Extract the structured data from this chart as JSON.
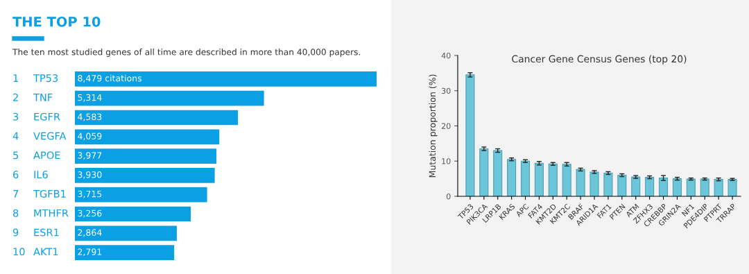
{
  "chart_data": [
    {
      "type": "bar",
      "orientation": "horizontal",
      "title": "THE TOP 10",
      "subtitle": "The ten most studied genes of all time are described in more than 40,000 papers.",
      "categories": [
        "TP53",
        "TNF",
        "EGFR",
        "VEGFA",
        "APOE",
        "IL6",
        "TGFB1",
        "MTHFR",
        "ESR1",
        "AKT1"
      ],
      "annotations": [
        "1",
        "2",
        "3",
        "4",
        "5",
        "6",
        "7",
        "8",
        "9",
        "10"
      ],
      "values": [
        8479,
        5314,
        4583,
        4059,
        3977,
        3930,
        3715,
        3256,
        2864,
        2791
      ],
      "value_labels": [
        "8,479 citations",
        "5,314",
        "4,583",
        "4,059",
        "3,977",
        "3,930",
        "3,715",
        "3,256",
        "2,864",
        "2,791"
      ],
      "color": "#0ba0e4"
    },
    {
      "type": "bar",
      "title": "Cancer Gene Census Genes (top 20)",
      "ylabel": "Mutation proportion (%)",
      "categories": [
        "TP53",
        "PIK3CA",
        "LRP1B",
        "KRAS",
        "APC",
        "FAT4",
        "KMT2D",
        "KMT2C",
        "BRAF",
        "ARID1A",
        "FAT1",
        "PTEN",
        "ATM",
        "ZFHX3",
        "CREBBP",
        "GRIN2A",
        "NF1",
        "PDE4DIP",
        "PTPRT",
        "TRRAP"
      ],
      "values": [
        34.5,
        13.5,
        13.0,
        10.5,
        10.0,
        9.4,
        9.2,
        9.1,
        7.6,
        6.9,
        6.6,
        6.0,
        5.5,
        5.4,
        5.2,
        5.0,
        4.9,
        4.9,
        4.8,
        4.8
      ],
      "errors": [
        0.6,
        0.5,
        0.5,
        0.4,
        0.4,
        0.5,
        0.4,
        0.5,
        0.4,
        0.4,
        0.4,
        0.4,
        0.4,
        0.4,
        0.7,
        0.4,
        0.3,
        0.3,
        0.4,
        0.3
      ],
      "color": "#6cc6da",
      "ylim": [
        0,
        40
      ],
      "yticks": [
        0,
        10,
        20,
        30,
        40
      ],
      "grid": false
    }
  ]
}
